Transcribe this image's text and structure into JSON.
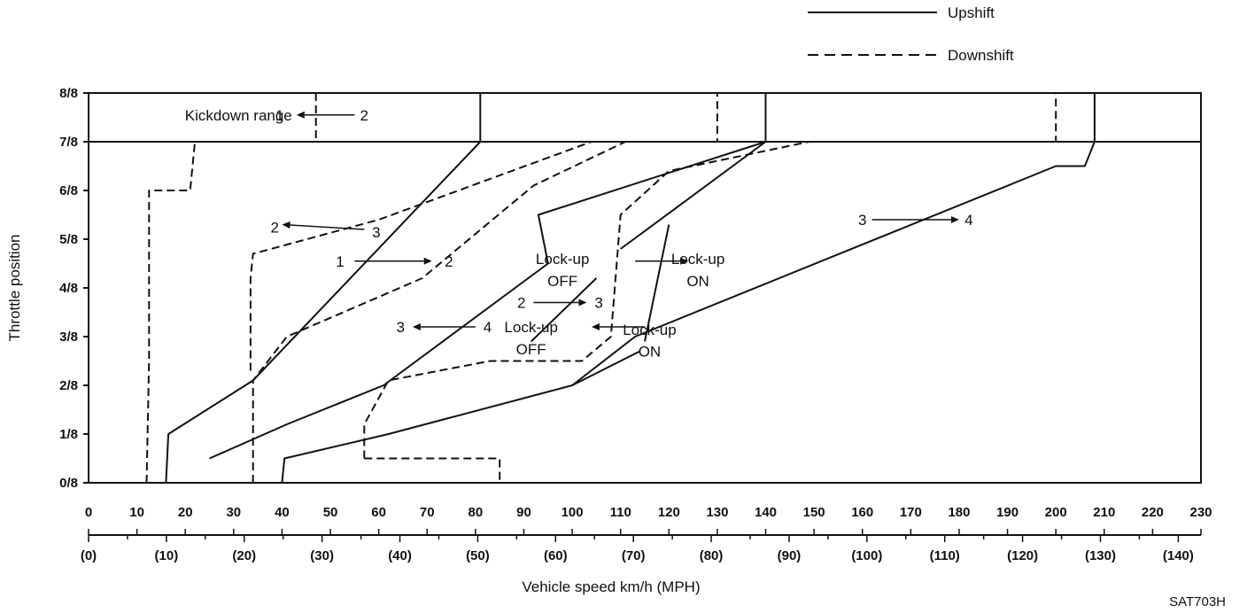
{
  "chart_data": {
    "type": "line",
    "xlabel": "Vehicle speed  km/h (MPH)",
    "ylabel": "Throttle position",
    "xlim": [
      0,
      230
    ],
    "ylim": [
      0,
      8
    ],
    "x_ticks": [
      "0",
      "10",
      "20",
      "30",
      "40",
      "50",
      "60",
      "70",
      "80",
      "90",
      "100",
      "110",
      "120",
      "130",
      "140",
      "150",
      "160",
      "170",
      "180",
      "190",
      "200",
      "210",
      "220",
      "230"
    ],
    "x_ticks_mph": [
      "(0)",
      "(10)",
      "(20)",
      "(30)",
      "(40)",
      "(50)",
      "(60)",
      "(70)",
      "(80)",
      "(90)",
      "(100)",
      "(110)",
      "(120)",
      "(130)",
      "(140)"
    ],
    "y_ticks": [
      "0/8",
      "1/8",
      "2/8",
      "3/8",
      "4/8",
      "5/8",
      "6/8",
      "7/8",
      "8/8"
    ],
    "legend": [
      {
        "name": "Upshift",
        "style": "solid"
      },
      {
        "name": "Downshift",
        "style": "dashed"
      }
    ],
    "legend_position": "top-right",
    "figure_code": "SAT703H",
    "annotations": [
      {
        "text": "Kickdown range",
        "x": 31,
        "y": 7.55
      },
      {
        "text": "1",
        "x": 39.5,
        "y": 7.55
      },
      {
        "text": "2",
        "x": 57,
        "y": 7.55
      },
      {
        "text": "2",
        "x": 38.5,
        "y": 5.25
      },
      {
        "text": "3",
        "x": 59.5,
        "y": 5.15
      },
      {
        "text": "1",
        "x": 52,
        "y": 4.55
      },
      {
        "text": "2",
        "x": 74.5,
        "y": 4.55
      },
      {
        "text": "3",
        "x": 64.5,
        "y": 3.2
      },
      {
        "text": "4",
        "x": 82.5,
        "y": 3.2
      },
      {
        "text": "2",
        "x": 89.5,
        "y": 3.7
      },
      {
        "text": "3",
        "x": 105.5,
        "y": 3.7
      },
      {
        "text": "Lock-up",
        "x": 98,
        "y": 4.6
      },
      {
        "text": "OFF",
        "x": 98,
        "y": 4.15
      },
      {
        "text": "Lock-up",
        "x": 126,
        "y": 4.6
      },
      {
        "text": "ON",
        "x": 126,
        "y": 4.15
      },
      {
        "text": "Lock-up",
        "x": 91.5,
        "y": 3.2
      },
      {
        "text": "OFF",
        "x": 91.5,
        "y": 2.75
      },
      {
        "text": "Lock-up",
        "x": 116,
        "y": 3.15
      },
      {
        "text": "ON",
        "x": 116,
        "y": 2.7
      },
      {
        "text": "3",
        "x": 160,
        "y": 5.4
      },
      {
        "text": "4",
        "x": 182,
        "y": 5.4
      }
    ],
    "arrows": [
      {
        "from": [
          55,
          7.55
        ],
        "to": [
          43,
          7.55
        ]
      },
      {
        "from": [
          57,
          5.2
        ],
        "to": [
          40,
          5.3
        ]
      },
      {
        "from": [
          55,
          4.55
        ],
        "to": [
          71,
          4.55
        ]
      },
      {
        "from": [
          80,
          3.2
        ],
        "to": [
          67,
          3.2
        ]
      },
      {
        "from": [
          92,
          3.7
        ],
        "to": [
          103,
          3.7
        ]
      },
      {
        "from": [
          115,
          3.2
        ],
        "to": [
          104,
          3.2
        ]
      },
      {
        "from": [
          113,
          4.55
        ],
        "to": [
          124,
          4.55
        ]
      },
      {
        "from": [
          162,
          5.4
        ],
        "to": [
          180,
          5.4
        ]
      }
    ],
    "series": [
      {
        "name": "Downshift",
        "style": "dashed",
        "group": "kickdown 2-1",
        "points": [
          [
            47,
            8
          ],
          [
            47,
            7
          ],
          [
            0,
            7
          ]
        ]
      },
      {
        "name": "Downshift",
        "style": "dashed",
        "group": "2-1",
        "points": [
          [
            12,
            0
          ],
          [
            12.5,
            2.5
          ],
          [
            12.5,
            6
          ],
          [
            21,
            6
          ],
          [
            22,
            7
          ],
          [
            47,
            7
          ]
        ]
      },
      {
        "name": "Downshift",
        "style": "dashed",
        "group": "3-2",
        "points": [
          [
            34,
            0
          ],
          [
            34,
            2.1
          ],
          [
            41,
            3
          ],
          [
            69,
            4.2
          ],
          [
            92,
            6.1
          ],
          [
            111,
            7
          ]
        ]
      },
      {
        "name": "Downshift",
        "style": "dashed",
        "group": "3-2 to 7/8 line",
        "points": [
          [
            33.5,
            2.3
          ],
          [
            33.5,
            4.2
          ],
          [
            34,
            4.7
          ],
          [
            60,
            5.4
          ],
          [
            104,
            7
          ],
          [
            130,
            7
          ],
          [
            130,
            8
          ]
        ]
      },
      {
        "name": "Downshift",
        "style": "dashed",
        "group": "4-3 lock-up",
        "points": [
          [
            57,
            0.5
          ],
          [
            85,
            0.5
          ],
          [
            85,
            0
          ]
        ]
      },
      {
        "name": "Downshift",
        "style": "dashed",
        "group": "4-3",
        "points": [
          [
            57,
            0.5
          ],
          [
            57,
            1.2
          ],
          [
            62,
            2.1
          ],
          [
            83,
            2.5
          ],
          [
            102,
            2.5
          ],
          [
            108,
            3
          ],
          [
            110,
            5.5
          ],
          [
            120,
            6.4
          ],
          [
            149,
            7
          ],
          [
            200,
            7
          ],
          [
            200,
            8
          ]
        ]
      },
      {
        "name": "Upshift",
        "style": "solid",
        "group": "1-2",
        "points": [
          [
            16,
            0
          ],
          [
            16.5,
            1
          ],
          [
            34,
            2.1
          ],
          [
            81,
            7
          ],
          [
            81,
            8
          ]
        ]
      },
      {
        "name": "Upshift",
        "style": "solid",
        "group": "2-3",
        "points": [
          [
            25,
            0.5
          ],
          [
            41,
            1.2
          ],
          [
            61,
            2
          ],
          [
            95,
            4.5
          ],
          [
            93,
            5.5
          ],
          [
            140,
            7
          ],
          [
            140,
            8
          ]
        ]
      },
      {
        "name": "Upshift",
        "style": "solid",
        "group": "2-3 lock-up",
        "points": [
          [
            110,
            4.8
          ],
          [
            140,
            7
          ]
        ]
      },
      {
        "name": "Upshift",
        "style": "solid",
        "group": "3-4",
        "points": [
          [
            40,
            0
          ],
          [
            40.5,
            0.5
          ],
          [
            62,
            1
          ],
          [
            100,
            2
          ],
          [
            113,
            3
          ],
          [
            200,
            6.5
          ],
          [
            206,
            6.5
          ],
          [
            208,
            7
          ],
          [
            208,
            8
          ]
        ]
      },
      {
        "name": "Upshift",
        "style": "solid",
        "group": "3-4 lock-up",
        "points": [
          [
            100,
            2
          ],
          [
            114,
            2.7
          ]
        ]
      },
      {
        "name": "Upshift",
        "style": "solid",
        "group": "3-4 lock-up ON",
        "points": [
          [
            115,
            2.9
          ],
          [
            120,
            5.3
          ]
        ]
      },
      {
        "name": "Upshift",
        "style": "solid",
        "group": "4 lock-up OFF",
        "points": [
          [
            91.5,
            2.9
          ],
          [
            105,
            4.2
          ]
        ]
      }
    ]
  }
}
